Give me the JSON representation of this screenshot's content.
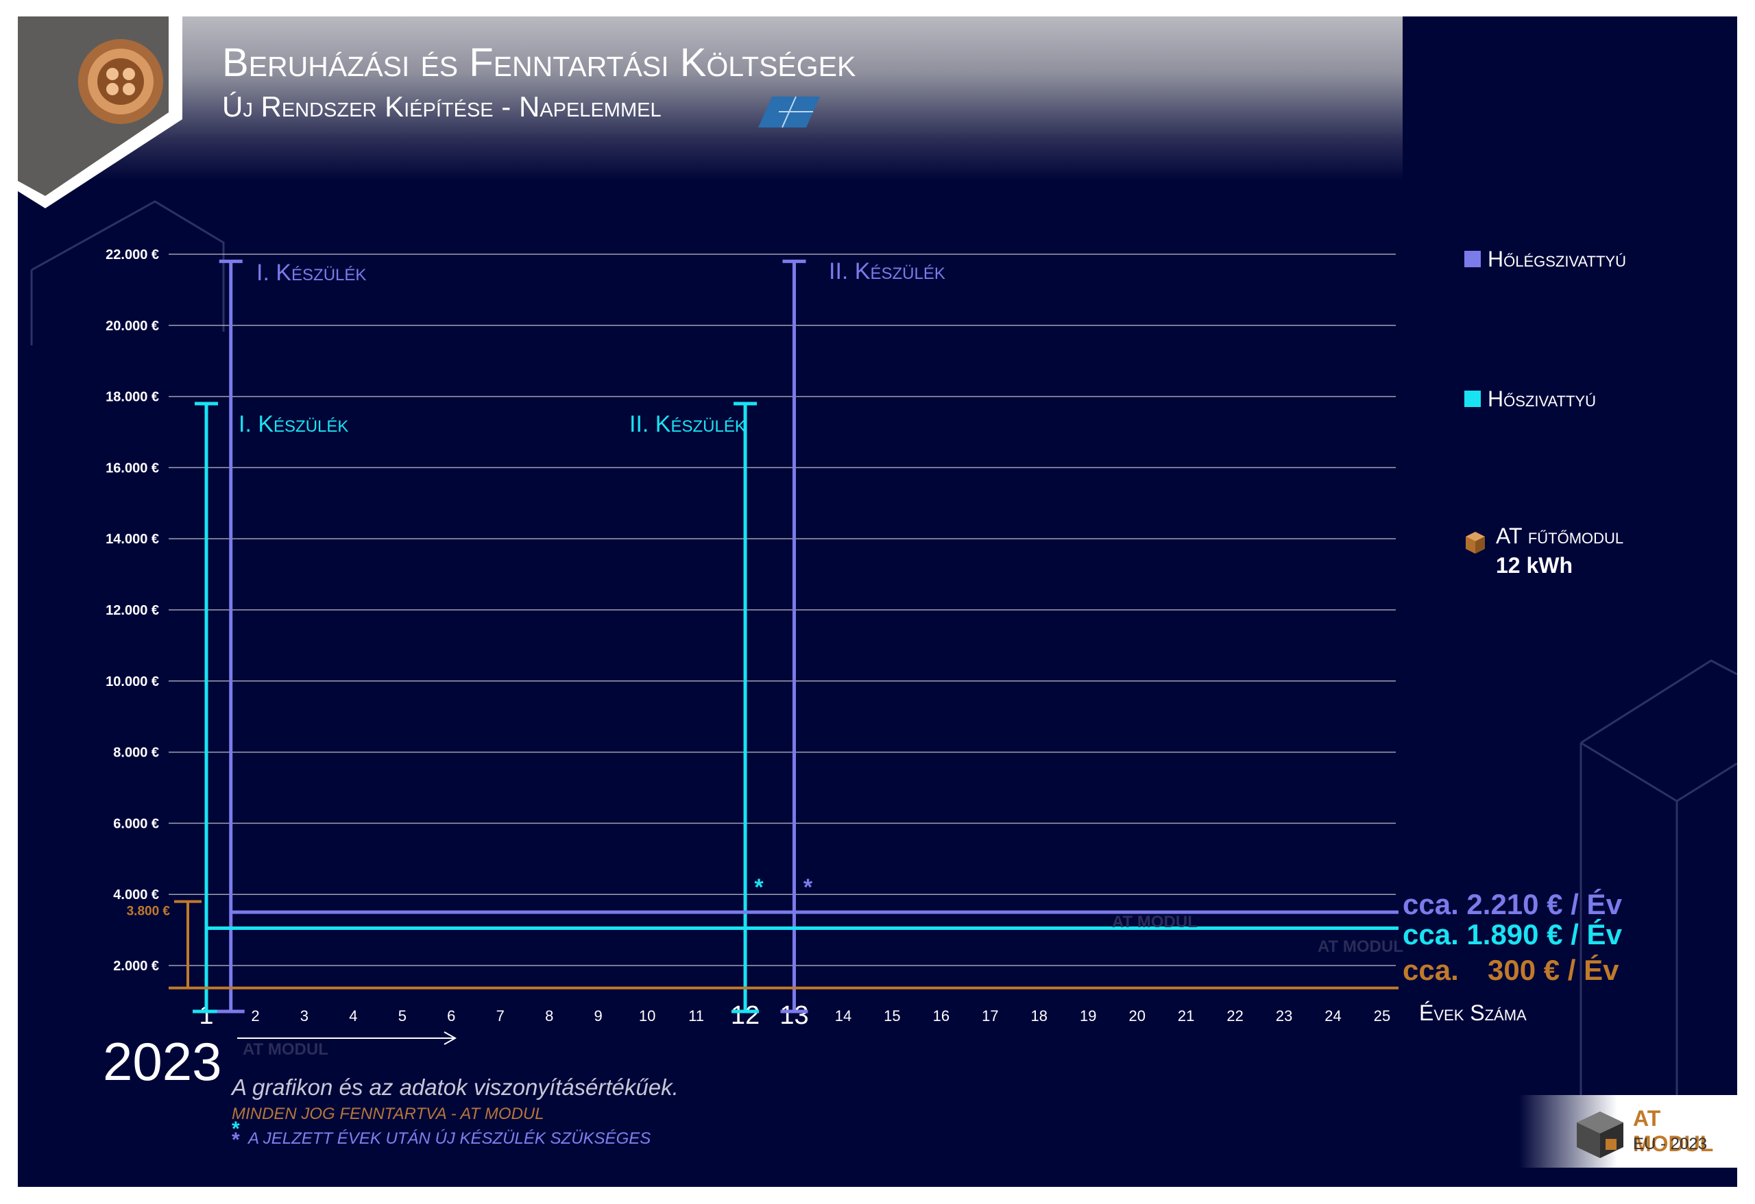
{
  "header": {
    "title": "Beruházási és Fenntartási Költségek",
    "subtitle": "Új Rendszer Kiépítése - Napelemmel"
  },
  "legend": {
    "air_pump": "Hőlégszivattyú",
    "heat_pump": "Hőszivattyú",
    "at_module": "AT fűtőmodul",
    "at_module_power": "12 kWh"
  },
  "costs": {
    "air_pump": "cca. 2.210 € / Év",
    "heat_pump": "cca. 1.890 € / Év",
    "at_prefix": "cca.",
    "at_module": "300 € / Év"
  },
  "footer": {
    "year": "2023",
    "x_axis_title": "Évek Száma",
    "note": "A grafikon és az adatok viszonyításértékűek.",
    "copyright": "MINDEN JOG FENNTARTVA - AT MODUL",
    "asterisk_note": "A JELZETT ÉVEK UTÁN ÚJ KÉSZÜLÉK SZÜKSÉGES",
    "watermark": "AT MODUL"
  },
  "logo": {
    "name": "AT MODUL",
    "sub": "EU - 2023"
  },
  "colors": {
    "background": "#000538",
    "air_pump": "#7b7bea",
    "heat_pump": "#19e3f2",
    "at_module": "#c07a2a",
    "grid": "#c8c8d0"
  },
  "chart_data": {
    "type": "line",
    "x": [
      1,
      2,
      3,
      4,
      5,
      6,
      7,
      8,
      9,
      10,
      11,
      12,
      13,
      14,
      15,
      16,
      17,
      18,
      19,
      20,
      21,
      22,
      23,
      24,
      25
    ],
    "x_emphasized": [
      1,
      12,
      13
    ],
    "y_ticks": [
      "2.000 €",
      "4.000 €",
      "6.000 €",
      "8.000 €",
      "10.000 €",
      "12.000 €",
      "14.000 €",
      "16.000 €",
      "18.000 €",
      "20.000 €",
      "22.000 €"
    ],
    "y_tick_values": [
      2000,
      4000,
      6000,
      8000,
      10000,
      12000,
      14000,
      16000,
      18000,
      20000,
      22000
    ],
    "ylim": [
      1200,
      22300
    ],
    "grid": true,
    "device_label_first": "I. Készülék",
    "device_label_second": "II. Készülék",
    "asterisk": "*",
    "at_module_value_label": "3.800 €",
    "series": [
      {
        "name": "Hőlégszivattyú",
        "annual_cost": 3500,
        "device_bars": [
          {
            "year": 1.5,
            "value": 21800
          },
          {
            "year": 13,
            "value": 21800
          }
        ],
        "replacement_year": 13
      },
      {
        "name": "Hőszivattyú",
        "annual_cost": 3050,
        "device_bars": [
          {
            "year": 1,
            "value": 17800
          },
          {
            "year": 12,
            "value": 17800
          }
        ],
        "replacement_year": 12
      },
      {
        "name": "AT fűtőmodul",
        "annual_cost": 1370,
        "device_bars": [
          {
            "year": 0.5,
            "value": 3800
          }
        ]
      }
    ]
  }
}
